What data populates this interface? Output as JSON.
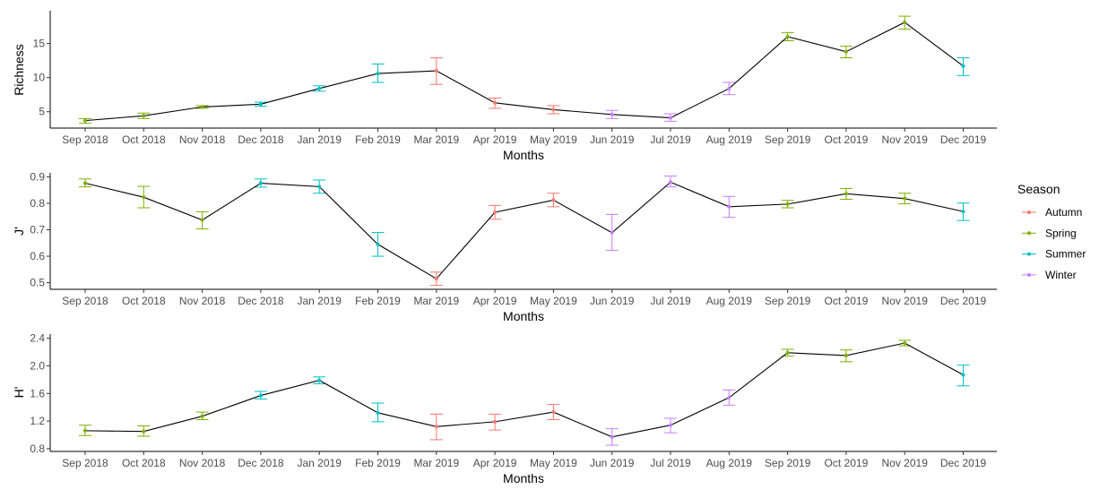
{
  "chart_data": {
    "type": "line",
    "layout": "three stacked panels with shared x axis categories, error bars and seasonal colouring",
    "categories": [
      "Sep 2018",
      "Oct 2018",
      "Nov 2018",
      "Dec 2018",
      "Jan 2019",
      "Feb 2019",
      "Mar 2019",
      "Apr 2019",
      "May 2019",
      "Jun 2019",
      "Jul 2019",
      "Aug 2019",
      "Sep 2019",
      "Oct 2019",
      "Nov 2019",
      "Dec 2019"
    ],
    "seasons": [
      "Spring",
      "Spring",
      "Spring",
      "Summer",
      "Summer",
      "Summer",
      "Autumn",
      "Autumn",
      "Autumn",
      "Winter",
      "Winter",
      "Winter",
      "Spring",
      "Spring",
      "Spring",
      "Summer"
    ],
    "legend": {
      "title": "Season",
      "position": "right",
      "entries": [
        {
          "label": "Autumn",
          "color": "#F8766D"
        },
        {
          "label": "Spring",
          "color": "#7CAE00"
        },
        {
          "label": "Summer",
          "color": "#00BFC4"
        },
        {
          "label": "Winter",
          "color": "#C77CFF"
        }
      ]
    },
    "line_color": "#000000",
    "grid": false,
    "panels": [
      {
        "ylabel": "Richness",
        "xlabel": "Months",
        "ylim": [
          2.6,
          19.8
        ],
        "yticks": [
          5,
          10,
          15
        ],
        "ytick_labels": [
          "5",
          "10",
          "15"
        ],
        "values": [
          3.7,
          4.4,
          5.7,
          6.1,
          8.4,
          10.6,
          11.0,
          6.3,
          5.3,
          4.6,
          4.1,
          8.4,
          16.0,
          13.8,
          18.1,
          11.7
        ],
        "lower": [
          3.3,
          4.0,
          5.5,
          5.8,
          8.0,
          9.3,
          9.0,
          5.5,
          4.7,
          4.0,
          3.6,
          7.5,
          15.4,
          12.9,
          17.1,
          10.3
        ],
        "upper": [
          4.0,
          4.8,
          5.9,
          6.4,
          8.8,
          12.0,
          12.9,
          7.0,
          5.9,
          5.2,
          4.7,
          9.3,
          16.6,
          14.6,
          19.0,
          12.9
        ]
      },
      {
        "ylabel": "J'",
        "xlabel": "Months",
        "ylim": [
          0.475,
          0.915
        ],
        "yticks": [
          0.5,
          0.6,
          0.7,
          0.8,
          0.9
        ],
        "ytick_labels": [
          "0.5",
          "0.6",
          "0.7",
          "0.8",
          "0.9"
        ],
        "values": [
          0.876,
          0.823,
          0.737,
          0.876,
          0.863,
          0.645,
          0.515,
          0.766,
          0.812,
          0.689,
          0.88,
          0.787,
          0.797,
          0.836,
          0.818,
          0.769
        ],
        "lower": [
          0.862,
          0.783,
          0.703,
          0.861,
          0.838,
          0.6,
          0.49,
          0.74,
          0.787,
          0.622,
          0.862,
          0.747,
          0.783,
          0.815,
          0.798,
          0.735
        ],
        "upper": [
          0.892,
          0.864,
          0.768,
          0.892,
          0.888,
          0.69,
          0.54,
          0.792,
          0.838,
          0.758,
          0.903,
          0.826,
          0.811,
          0.856,
          0.838,
          0.801
        ]
      },
      {
        "ylabel": "H'",
        "xlabel": "Months",
        "ylim": [
          0.76,
          2.46
        ],
        "yticks": [
          0.8,
          1.2,
          1.6,
          2.0,
          2.4
        ],
        "ytick_labels": [
          "0.8",
          "1.2",
          "1.6",
          "2.0",
          "2.4"
        ],
        "values": [
          1.06,
          1.05,
          1.27,
          1.57,
          1.79,
          1.32,
          1.12,
          1.19,
          1.33,
          0.97,
          1.14,
          1.54,
          2.19,
          2.15,
          2.33,
          1.87
        ],
        "lower": [
          0.99,
          0.98,
          1.22,
          1.52,
          1.74,
          1.19,
          0.93,
          1.07,
          1.22,
          0.85,
          1.03,
          1.43,
          2.14,
          2.06,
          2.29,
          1.71
        ],
        "upper": [
          1.14,
          1.13,
          1.33,
          1.63,
          1.84,
          1.46,
          1.3,
          1.3,
          1.44,
          1.09,
          1.24,
          1.65,
          2.24,
          2.23,
          2.37,
          2.01
        ]
      }
    ]
  }
}
